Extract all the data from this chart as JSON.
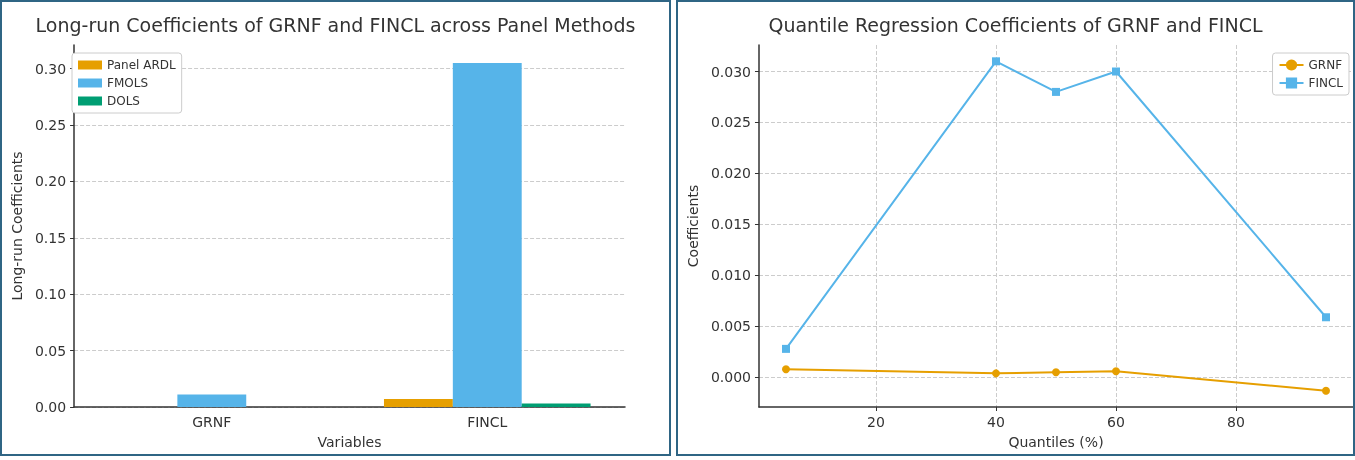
{
  "chart_data": [
    {
      "type": "bar",
      "title": "Long-run Coefficients of GRNF and FINCL across Panel Methods",
      "xlabel": "Variables",
      "ylabel": "Long-run Coefficients",
      "categories": [
        "GRNF",
        "FINCL"
      ],
      "series": [
        {
          "name": "Panel ARDL",
          "color": "#e69f00",
          "values": [
            0,
            0.007
          ]
        },
        {
          "name": "FMOLS",
          "color": "#56b4e9",
          "values": [
            0.011,
            0.305
          ]
        },
        {
          "name": "DOLS",
          "color": "#009e73",
          "values": [
            0,
            0.003
          ]
        }
      ],
      "ylim": [
        0,
        0.321
      ],
      "yticks": [
        {
          "value": 0,
          "label": "0.00"
        },
        0.05,
        {
          "value": 0.1,
          "label": "0.10"
        },
        0.15,
        {
          "value": 0.2,
          "label": "0.20"
        },
        0.25,
        {
          "value": 0.3,
          "label": "0.30"
        }
      ],
      "grid": true,
      "legend": "top left"
    },
    {
      "type": "line",
      "title": "Quantile Regression Coefficients of GRNF and FINCL",
      "xlabel": "Quantiles (%)",
      "ylabel": "Coefficients",
      "x": [
        5,
        40,
        50,
        60,
        95
      ],
      "series": [
        {
          "name": "GRNF",
          "color": "#e69f00",
          "marker": "circle",
          "values": [
            0.0008,
            0.0004,
            0.0005,
            0.0006,
            -0.0013
          ]
        },
        {
          "name": "FINCL",
          "color": "#56b4e9",
          "marker": "square",
          "values": [
            0.0028,
            0.031,
            0.028,
            0.03,
            0.0059
          ]
        }
      ],
      "xlim": [
        0.5,
        99.5
      ],
      "xticks": [
        20,
        40,
        60,
        80
      ],
      "ylim": [
        -0.0029,
        0.0326
      ],
      "yticks": [
        {
          "value": 0,
          "label": "0.000"
        },
        0.005,
        {
          "value": 0.01,
          "label": "0.010"
        },
        0.015,
        {
          "value": 0.02,
          "label": "0.020"
        },
        0.025,
        {
          "value": 0.03,
          "label": "0.030"
        }
      ],
      "grid": true,
      "legend": "top right"
    }
  ]
}
